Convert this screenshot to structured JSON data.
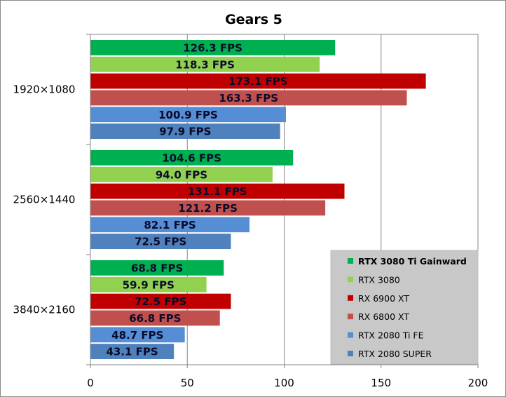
{
  "chart_data": {
    "type": "bar",
    "orientation": "horizontal",
    "title": "Gears 5",
    "categories": [
      "1920×1080",
      "2560×1440",
      "3840×2160"
    ],
    "xlim": [
      0,
      200
    ],
    "x_ticks": [
      "0",
      "50",
      "100",
      "150",
      "200"
    ],
    "grid": true,
    "legend_position": "bottom-right",
    "series": [
      {
        "name": "RTX 3080 Ti Gainward",
        "color": "#00b050",
        "values": [
          126.3,
          104.6,
          68.8
        ],
        "labels": [
          "126.3 FPS",
          "104.6 FPS",
          "68.8 FPS"
        ]
      },
      {
        "name": "RTX 3080",
        "color": "#92d050",
        "values": [
          118.3,
          94.0,
          59.9
        ],
        "labels": [
          "118.3 FPS",
          "94.0 FPS",
          "59.9 FPS"
        ]
      },
      {
        "name": "RX 6900 XT",
        "color": "#c00000",
        "values": [
          173.1,
          131.1,
          72.5
        ],
        "labels": [
          "173.1 FPS",
          "131.1 FPS",
          "72.5 FPS"
        ]
      },
      {
        "name": "RX 6800 XT",
        "color": "#c0504d",
        "values": [
          163.3,
          121.2,
          66.8
        ],
        "labels": [
          "163.3 FPS",
          "121.2 FPS",
          "66.8 FPS"
        ]
      },
      {
        "name": "RTX 2080 Ti FE",
        "color": "#558ed5",
        "values": [
          100.9,
          82.1,
          48.7
        ],
        "labels": [
          "100.9 FPS",
          "82.1 FPS",
          "48.7 FPS"
        ]
      },
      {
        "name": "RTX 2080 SUPER",
        "color": "#4f81bd",
        "values": [
          97.9,
          72.5,
          43.1
        ],
        "labels": [
          "97.9 FPS",
          "72.5 FPS",
          "43.1 FPS"
        ]
      }
    ]
  }
}
